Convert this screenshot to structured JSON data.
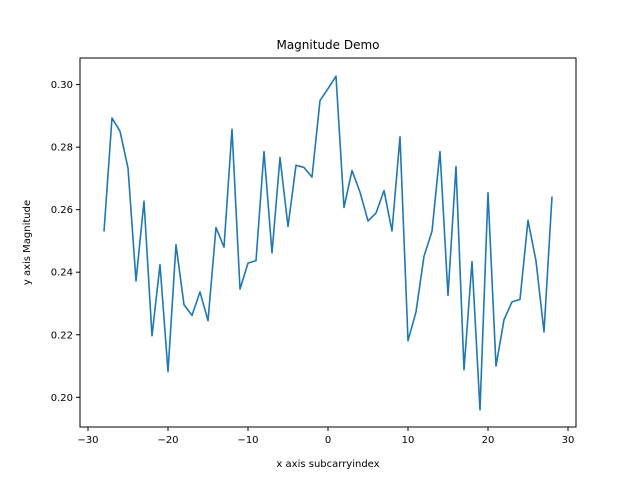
{
  "chart_data": {
    "type": "line",
    "title": "Magnitude Demo",
    "xlabel": "x axis subcarryindex",
    "ylabel": "y axis Magnitude",
    "xlim": [
      -31,
      31
    ],
    "ylim": [
      0.1905,
      0.3085
    ],
    "grid": false,
    "line_color": "#1f77b4",
    "xticks": [
      -30,
      -20,
      -10,
      0,
      10,
      20,
      30
    ],
    "xtick_labels": [
      "−30",
      "−20",
      "−10",
      "0",
      "10",
      "20",
      "30"
    ],
    "yticks": [
      0.2,
      0.22,
      0.24,
      0.26,
      0.28,
      0.3
    ],
    "ytick_labels": [
      "0.20",
      "0.22",
      "0.24",
      "0.26",
      "0.28",
      "0.30"
    ],
    "series": [
      {
        "x": [
          -28,
          -27,
          -26,
          -25,
          -24,
          -23,
          -22,
          -21,
          -20,
          -19,
          -18,
          -17,
          -16,
          -15,
          -14,
          -13,
          -12,
          -11,
          -10,
          -9,
          -8,
          -7,
          -6,
          -5,
          -4,
          -3,
          -2,
          -1,
          0,
          1,
          2,
          3,
          4,
          5,
          6,
          7,
          8,
          9,
          10,
          11,
          12,
          13,
          14,
          15,
          16,
          17,
          18,
          19,
          20,
          21,
          22,
          23,
          24,
          25,
          26,
          27,
          28
        ],
        "y": [
          0.253,
          0.2893,
          0.2851,
          0.2733,
          0.2372,
          0.2627,
          0.2197,
          0.2424,
          0.2082,
          0.2488,
          0.2296,
          0.2262,
          0.2337,
          0.2245,
          0.2543,
          0.248,
          0.2857,
          0.2346,
          0.2429,
          0.2437,
          0.2786,
          0.2462,
          0.2767,
          0.2546,
          0.2742,
          0.2735,
          0.2704,
          0.2949,
          0.2987,
          0.3027,
          0.2607,
          0.2725,
          0.2656,
          0.2564,
          0.2589,
          0.2661,
          0.2532,
          0.2833,
          0.2181,
          0.2273,
          0.2451,
          0.2531,
          0.2786,
          0.2326,
          0.2738,
          0.2088,
          0.2434,
          0.196,
          0.2654,
          0.21,
          0.2248,
          0.2305,
          0.2313,
          0.2566,
          0.2436,
          0.2209,
          0.2642
        ]
      }
    ]
  }
}
